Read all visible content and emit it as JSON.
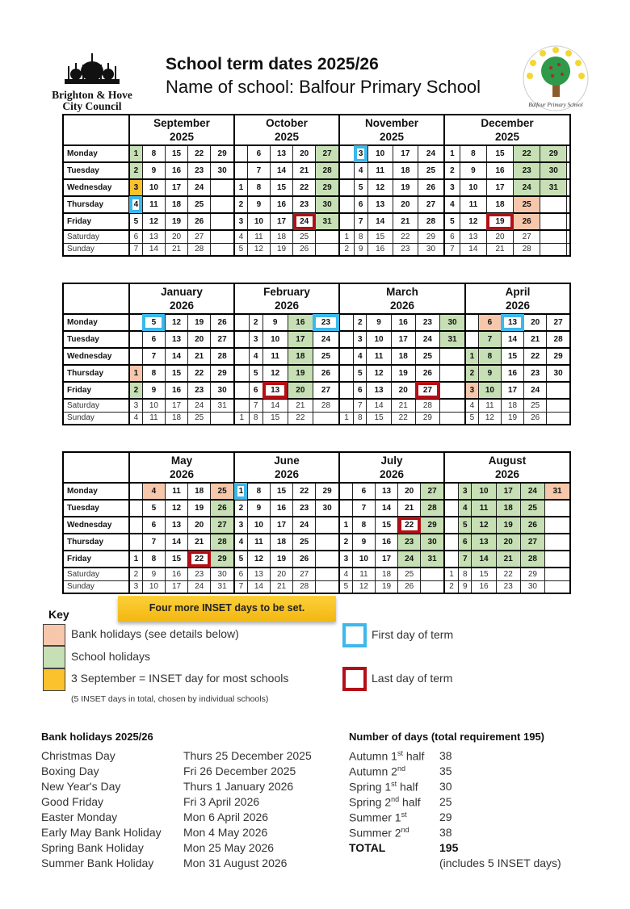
{
  "header": {
    "council": "Brighton & Hove City Council",
    "council_line1": "Brighton & Hove",
    "council_line2": "City Council",
    "title": "School term dates 2025/26",
    "subtitle": "Name of school: Balfour Primary School",
    "school_logo_text": "Balfour Primary School"
  },
  "weekdays": [
    "Monday",
    "Tuesday",
    "Wednesday",
    "Thursday",
    "Friday",
    "Saturday",
    "Sunday"
  ],
  "colors": {
    "school_holiday": "#c6dfb4",
    "bank_holiday": "#f6c7ab",
    "inset": "#fcc22d",
    "first_day": "#3cb8ea",
    "last_day": "#b30f16"
  },
  "blocks": [
    {
      "months": [
        {
          "name": "September",
          "year": "2025",
          "cols": [
            [
              1,
              2,
              3,
              4,
              5,
              6,
              7
            ],
            [
              8,
              9,
              10,
              11,
              12,
              13,
              14
            ],
            [
              15,
              16,
              17,
              18,
              19,
              20,
              21
            ],
            [
              22,
              23,
              24,
              25,
              26,
              27,
              28
            ],
            [
              29,
              30,
              0,
              0,
              0,
              0,
              0
            ]
          ],
          "marks": {
            "s": [
              1,
              2
            ],
            "i": [
              3
            ],
            "first": [
              4
            ]
          }
        },
        {
          "name": "October",
          "year": "2025",
          "cols": [
            [
              0,
              0,
              1,
              2,
              3,
              4,
              5
            ],
            [
              6,
              7,
              8,
              9,
              10,
              11,
              12
            ],
            [
              13,
              14,
              15,
              16,
              17,
              18,
              19
            ],
            [
              20,
              21,
              22,
              23,
              24,
              25,
              26
            ],
            [
              27,
              28,
              29,
              30,
              31,
              0,
              0
            ]
          ],
          "marks": {
            "s": [
              27,
              28,
              29,
              30,
              31
            ],
            "last": [
              24
            ]
          }
        },
        {
          "name": "November",
          "year": "2025",
          "cols": [
            [
              0,
              0,
              0,
              0,
              0,
              1,
              2
            ],
            [
              3,
              4,
              5,
              6,
              7,
              8,
              9
            ],
            [
              10,
              11,
              12,
              13,
              14,
              15,
              16
            ],
            [
              17,
              18,
              19,
              20,
              21,
              22,
              23
            ],
            [
              24,
              25,
              26,
              27,
              28,
              29,
              30
            ]
          ],
          "marks": {
            "first": [
              3
            ]
          }
        },
        {
          "name": "December",
          "year": "2025",
          "cols": [
            [
              1,
              2,
              3,
              4,
              5,
              6,
              7
            ],
            [
              8,
              9,
              10,
              11,
              12,
              13,
              14
            ],
            [
              15,
              16,
              17,
              18,
              19,
              20,
              21
            ],
            [
              22,
              23,
              24,
              25,
              26,
              27,
              28
            ],
            [
              29,
              30,
              31,
              0,
              0,
              0,
              0
            ],
            [
              0,
              0,
              0,
              0,
              0,
              0,
              0
            ]
          ],
          "marks": {
            "s": [
              22,
              23,
              24,
              29,
              30,
              31
            ],
            "b": [
              25,
              26
            ],
            "last": [
              19
            ]
          }
        }
      ]
    },
    {
      "months": [
        {
          "name": "January",
          "year": "2026",
          "cols": [
            [
              0,
              0,
              0,
              1,
              2,
              3,
              4
            ],
            [
              5,
              6,
              7,
              8,
              9,
              10,
              11
            ],
            [
              12,
              13,
              14,
              15,
              16,
              17,
              18
            ],
            [
              19,
              20,
              21,
              22,
              23,
              24,
              25
            ],
            [
              26,
              27,
              28,
              29,
              30,
              31,
              0
            ]
          ],
          "marks": {
            "b": [
              1
            ],
            "s": [
              2
            ],
            "first": [
              5
            ]
          }
        },
        {
          "name": "February",
          "year": "2026",
          "cols": [
            [
              0,
              0,
              0,
              0,
              0,
              0,
              1
            ],
            [
              2,
              3,
              4,
              5,
              6,
              7,
              8
            ],
            [
              9,
              10,
              11,
              12,
              13,
              14,
              15
            ],
            [
              16,
              17,
              18,
              19,
              20,
              21,
              22
            ],
            [
              23,
              24,
              25,
              26,
              27,
              28,
              0
            ]
          ],
          "marks": {
            "s": [
              16,
              17,
              18,
              19,
              20
            ],
            "last": [
              13
            ],
            "first": [
              23
            ]
          }
        },
        {
          "name": "March",
          "year": "2026",
          "cols": [
            [
              0,
              0,
              0,
              0,
              0,
              0,
              1
            ],
            [
              2,
              3,
              4,
              5,
              6,
              7,
              8
            ],
            [
              9,
              10,
              11,
              12,
              13,
              14,
              15
            ],
            [
              16,
              17,
              18,
              19,
              20,
              21,
              22
            ],
            [
              23,
              24,
              25,
              26,
              27,
              28,
              29
            ],
            [
              30,
              31,
              0,
              0,
              0,
              0,
              0
            ]
          ],
          "marks": {
            "s": [
              30,
              31
            ],
            "last": [
              27
            ]
          }
        },
        {
          "name": "April",
          "year": "2026",
          "cols": [
            [
              0,
              0,
              1,
              2,
              3,
              4,
              5
            ],
            [
              6,
              7,
              8,
              9,
              10,
              11,
              12
            ],
            [
              13,
              14,
              15,
              16,
              17,
              18,
              19
            ],
            [
              20,
              21,
              22,
              23,
              24,
              25,
              26
            ],
            [
              27,
              28,
              29,
              30,
              0,
              0,
              0
            ]
          ],
          "marks": {
            "s": [
              1,
              2,
              7,
              8,
              9,
              10
            ],
            "b": [
              3,
              6
            ],
            "first": [
              13
            ]
          }
        }
      ]
    },
    {
      "months": [
        {
          "name": "May",
          "year": "2026",
          "cols": [
            [
              0,
              0,
              0,
              0,
              1,
              2,
              3
            ],
            [
              4,
              5,
              6,
              7,
              8,
              9,
              10
            ],
            [
              11,
              12,
              13,
              14,
              15,
              16,
              17
            ],
            [
              18,
              19,
              20,
              21,
              22,
              23,
              24
            ],
            [
              25,
              26,
              27,
              28,
              29,
              30,
              31
            ]
          ],
          "marks": {
            "b": [
              4,
              25
            ],
            "s": [
              26,
              27,
              28,
              29
            ],
            "last": [
              22
            ]
          }
        },
        {
          "name": "June",
          "year": "2026",
          "cols": [
            [
              1,
              2,
              3,
              4,
              5,
              6,
              7
            ],
            [
              8,
              9,
              10,
              11,
              12,
              13,
              14
            ],
            [
              15,
              16,
              17,
              18,
              19,
              20,
              21
            ],
            [
              22,
              23,
              24,
              25,
              26,
              27,
              28
            ],
            [
              29,
              30,
              0,
              0,
              0,
              0,
              0
            ]
          ],
          "marks": {
            "first": [
              1
            ]
          }
        },
        {
          "name": "July",
          "year": "2026",
          "cols": [
            [
              0,
              0,
              1,
              2,
              3,
              4,
              5
            ],
            [
              6,
              7,
              8,
              9,
              10,
              11,
              12
            ],
            [
              13,
              14,
              15,
              16,
              17,
              18,
              19
            ],
            [
              20,
              21,
              22,
              23,
              24,
              25,
              26
            ],
            [
              27,
              28,
              29,
              30,
              31,
              0,
              0
            ]
          ],
          "marks": {
            "last": [
              22
            ],
            "s": [
              23,
              24,
              27,
              28,
              29,
              30,
              31
            ]
          }
        },
        {
          "name": "August",
          "year": "2026",
          "cols": [
            [
              0,
              0,
              0,
              0,
              0,
              1,
              2
            ],
            [
              3,
              4,
              5,
              6,
              7,
              8,
              9
            ],
            [
              10,
              11,
              12,
              13,
              14,
              15,
              16
            ],
            [
              17,
              18,
              19,
              20,
              21,
              22,
              23
            ],
            [
              24,
              25,
              26,
              27,
              28,
              29,
              30
            ],
            [
              31,
              0,
              0,
              0,
              0,
              0,
              0
            ]
          ],
          "marks": {
            "s": [
              3,
              4,
              5,
              6,
              7,
              10,
              11,
              12,
              13,
              14,
              17,
              18,
              19,
              20,
              21,
              24,
              25,
              26,
              27,
              28
            ],
            "b": [
              31
            ]
          }
        }
      ]
    }
  ],
  "banner": "Four more INSET days to be set.",
  "key": {
    "title": "Key",
    "bank": "Bank holidays (see details below)",
    "school": "School holidays",
    "inset": "3 September = INSET day for most schools",
    "inset_note": "(5 INSET days in total, chosen by individual schools)",
    "first": "First day of term",
    "last": "Last day of term"
  },
  "bank_holidays": {
    "title": "Bank holidays 2025/26",
    "items": [
      {
        "name": "Christmas Day",
        "date": "Thurs 25 December 2025"
      },
      {
        "name": "Boxing Day",
        "date": "Fri 26 December 2025"
      },
      {
        "name": "New Year's Day",
        "date": "Thurs 1 January 2026"
      },
      {
        "name": "Good Friday",
        "date": "Fri 3 April 2026"
      },
      {
        "name": "Easter Monday",
        "date": "Mon 6 April 2026"
      },
      {
        "name": "Early May Bank Holiday",
        "date": "Mon 4 May 2026"
      },
      {
        "name": "Spring Bank Holiday",
        "date": "Mon 25 May 2026"
      },
      {
        "name": "Summer Bank Holiday",
        "date": "Mon 31 August 2026"
      }
    ]
  },
  "days": {
    "title": "Number of days (total requirement 195)",
    "items": [
      {
        "term": "Autumn 1",
        "sup": "st",
        "suffix": " half",
        "days": "38"
      },
      {
        "term": "Autumn 2",
        "sup": "nd",
        "suffix": "",
        "days": "35"
      },
      {
        "term": "Spring 1",
        "sup": "st",
        "suffix": " half",
        "days": "30"
      },
      {
        "term": "Spring 2",
        "sup": "nd",
        "suffix": " half",
        "days": "25"
      },
      {
        "term": "Summer 1",
        "sup": "st",
        "suffix": "",
        "days": "29"
      },
      {
        "term": "Summer 2",
        "sup": "nd",
        "suffix": "",
        "days": "38"
      }
    ],
    "total_label": "TOTAL",
    "total": "195",
    "note": "(includes 5 INSET days)"
  }
}
